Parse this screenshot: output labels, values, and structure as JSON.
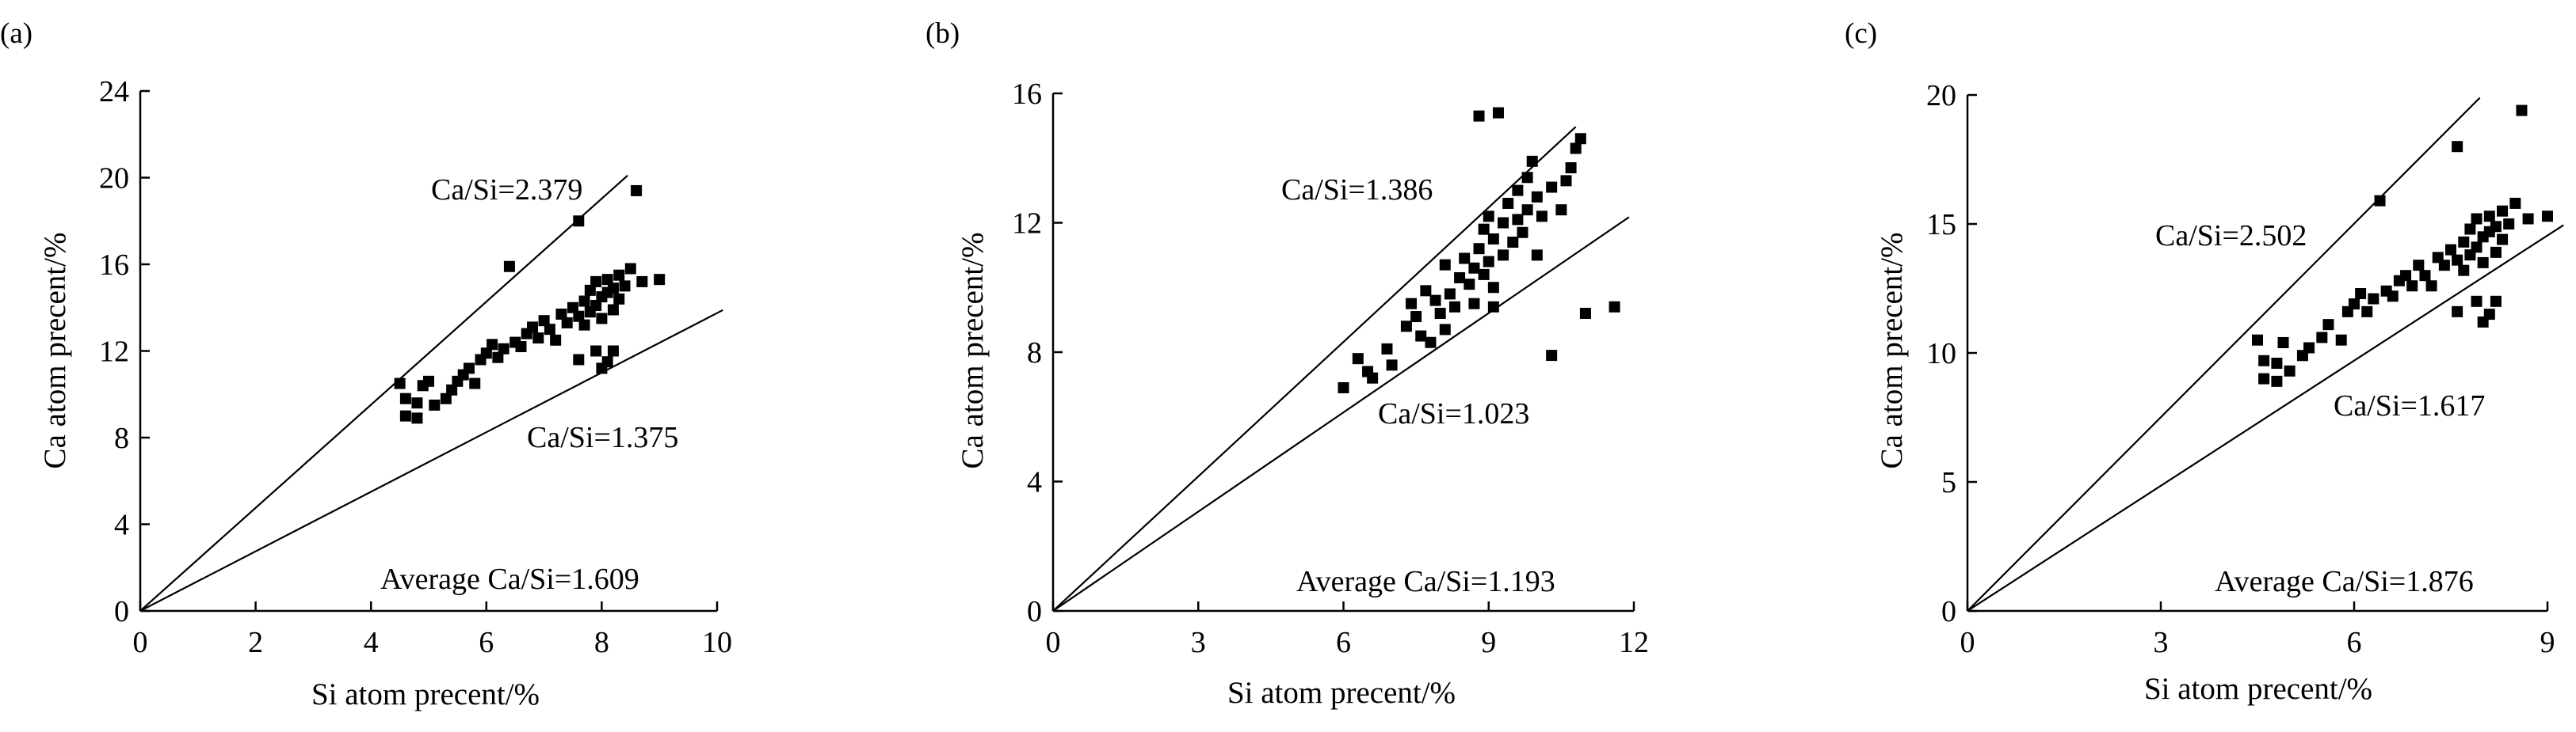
{
  "chart_data": [
    {
      "panel": "(a)",
      "type": "scatter",
      "xlabel": "Si atom precent/%",
      "ylabel": "Ca atom precent/%",
      "xlim": [
        0,
        10
      ],
      "ylim": [
        0,
        24
      ],
      "xticks": [
        0,
        2,
        4,
        6,
        8,
        10
      ],
      "yticks": [
        0,
        4,
        8,
        12,
        16,
        20,
        24
      ],
      "lines": [
        {
          "label": "Ca/Si=2.379",
          "slope": 2.379,
          "x_end": 8.45
        },
        {
          "label": "Ca/Si=1.375",
          "slope": 1.375,
          "x_end": 10.1
        }
      ],
      "annotation": "Average Ca/Si=1.609",
      "points": [
        [
          4.5,
          10.5
        ],
        [
          4.6,
          9.8
        ],
        [
          4.6,
          9.0
        ],
        [
          4.8,
          8.9
        ],
        [
          4.8,
          9.6
        ],
        [
          4.9,
          10.4
        ],
        [
          5.0,
          10.6
        ],
        [
          5.1,
          9.5
        ],
        [
          5.3,
          9.8
        ],
        [
          5.4,
          10.2
        ],
        [
          5.5,
          10.6
        ],
        [
          5.6,
          10.9
        ],
        [
          5.7,
          11.2
        ],
        [
          5.8,
          10.5
        ],
        [
          5.9,
          11.6
        ],
        [
          6.0,
          11.9
        ],
        [
          6.1,
          12.3
        ],
        [
          6.2,
          11.7
        ],
        [
          6.3,
          12.1
        ],
        [
          6.4,
          15.9
        ],
        [
          6.5,
          12.4
        ],
        [
          6.6,
          12.2
        ],
        [
          6.7,
          12.8
        ],
        [
          6.8,
          13.1
        ],
        [
          6.9,
          12.6
        ],
        [
          7.0,
          13.4
        ],
        [
          7.1,
          13.0
        ],
        [
          7.2,
          12.5
        ],
        [
          7.3,
          13.7
        ],
        [
          7.4,
          13.3
        ],
        [
          7.5,
          14.0
        ],
        [
          7.6,
          13.6
        ],
        [
          7.6,
          11.6
        ],
        [
          7.6,
          18.0
        ],
        [
          7.7,
          14.3
        ],
        [
          7.7,
          13.2
        ],
        [
          7.8,
          14.8
        ],
        [
          7.8,
          13.8
        ],
        [
          7.9,
          15.2
        ],
        [
          7.9,
          14.1
        ],
        [
          7.9,
          12.0
        ],
        [
          8.0,
          14.5
        ],
        [
          8.0,
          13.5
        ],
        [
          8.0,
          11.2
        ],
        [
          8.1,
          15.3
        ],
        [
          8.1,
          14.7
        ],
        [
          8.1,
          11.5
        ],
        [
          8.2,
          14.9
        ],
        [
          8.2,
          13.9
        ],
        [
          8.2,
          12.0
        ],
        [
          8.3,
          15.5
        ],
        [
          8.3,
          14.4
        ],
        [
          8.4,
          15.0
        ],
        [
          8.5,
          15.8
        ],
        [
          8.6,
          19.4
        ],
        [
          8.7,
          15.2
        ],
        [
          9.0,
          15.3
        ]
      ]
    },
    {
      "panel": "(b)",
      "type": "scatter",
      "xlabel": "Si atom precent/%",
      "ylabel": "Ca atom precent/%",
      "xlim": [
        0,
        12
      ],
      "ylim": [
        0,
        16
      ],
      "xticks": [
        0,
        3,
        6,
        9,
        12
      ],
      "yticks": [
        0,
        4,
        8,
        12,
        16
      ],
      "lines": [
        {
          "label": "Ca/Si=1.386",
          "slope": 1.386,
          "x_end": 10.8
        },
        {
          "label": "Ca/Si=1.023",
          "slope": 1.023,
          "x_end": 11.9
        }
      ],
      "annotation": "Average Ca/Si=1.193",
      "points": [
        [
          6.0,
          6.9
        ],
        [
          6.3,
          7.8
        ],
        [
          6.5,
          7.4
        ],
        [
          6.6,
          7.2
        ],
        [
          6.9,
          8.1
        ],
        [
          7.0,
          7.6
        ],
        [
          7.3,
          8.8
        ],
        [
          7.4,
          9.5
        ],
        [
          7.5,
          9.1
        ],
        [
          7.6,
          8.5
        ],
        [
          7.7,
          9.9
        ],
        [
          7.8,
          8.3
        ],
        [
          7.9,
          9.6
        ],
        [
          8.0,
          9.2
        ],
        [
          8.1,
          8.7
        ],
        [
          8.1,
          10.7
        ],
        [
          8.2,
          9.8
        ],
        [
          8.3,
          9.4
        ],
        [
          8.4,
          10.3
        ],
        [
          8.5,
          10.9
        ],
        [
          8.6,
          10.1
        ],
        [
          8.7,
          10.6
        ],
        [
          8.7,
          9.5
        ],
        [
          8.8,
          11.2
        ],
        [
          8.8,
          15.3
        ],
        [
          8.9,
          10.4
        ],
        [
          8.9,
          11.8
        ],
        [
          9.0,
          10.8
        ],
        [
          9.0,
          12.2
        ],
        [
          9.1,
          11.5
        ],
        [
          9.1,
          10.0
        ],
        [
          9.1,
          9.4
        ],
        [
          9.2,
          15.4
        ],
        [
          9.3,
          12.0
        ],
        [
          9.3,
          11.0
        ],
        [
          9.4,
          12.6
        ],
        [
          9.5,
          11.4
        ],
        [
          9.6,
          13.0
        ],
        [
          9.6,
          12.1
        ],
        [
          9.7,
          11.7
        ],
        [
          9.8,
          12.4
        ],
        [
          9.8,
          13.4
        ],
        [
          9.9,
          13.9
        ],
        [
          10.0,
          12.8
        ],
        [
          10.0,
          11.0
        ],
        [
          10.1,
          12.2
        ],
        [
          10.3,
          7.9
        ],
        [
          10.3,
          13.1
        ],
        [
          10.5,
          12.4
        ],
        [
          10.6,
          13.3
        ],
        [
          10.7,
          13.7
        ],
        [
          10.8,
          14.3
        ],
        [
          10.9,
          14.6
        ],
        [
          11.0,
          9.2
        ],
        [
          11.6,
          9.4
        ]
      ]
    },
    {
      "panel": "(c)",
      "type": "scatter",
      "xlabel": "Si atom precent/%",
      "ylabel": "Ca atom precent/%",
      "xlim": [
        0,
        9
      ],
      "ylim": [
        0,
        20
      ],
      "xticks": [
        0,
        3,
        6,
        9
      ],
      "yticks": [
        0,
        5,
        10,
        15,
        20
      ],
      "lines": [
        {
          "label": "Ca/Si=2.502",
          "slope": 2.502,
          "x_end": 7.95
        },
        {
          "label": "Ca/Si=1.617",
          "slope": 1.617,
          "x_end": 9.25
        }
      ],
      "annotation": "Average Ca/Si=1.876",
      "points": [
        [
          4.5,
          10.5
        ],
        [
          4.6,
          9.7
        ],
        [
          4.6,
          9.0
        ],
        [
          4.8,
          8.9
        ],
        [
          4.8,
          9.6
        ],
        [
          4.9,
          10.4
        ],
        [
          5.0,
          9.3
        ],
        [
          5.2,
          9.9
        ],
        [
          5.3,
          10.2
        ],
        [
          5.5,
          10.6
        ],
        [
          5.6,
          11.1
        ],
        [
          5.8,
          10.5
        ],
        [
          5.9,
          11.6
        ],
        [
          6.0,
          11.9
        ],
        [
          6.1,
          12.3
        ],
        [
          6.2,
          11.6
        ],
        [
          6.3,
          12.1
        ],
        [
          6.4,
          15.9
        ],
        [
          6.5,
          12.4
        ],
        [
          6.6,
          12.2
        ],
        [
          6.7,
          12.8
        ],
        [
          6.8,
          13.0
        ],
        [
          6.9,
          12.6
        ],
        [
          7.0,
          13.4
        ],
        [
          7.1,
          13.0
        ],
        [
          7.2,
          12.6
        ],
        [
          7.3,
          13.7
        ],
        [
          7.4,
          13.4
        ],
        [
          7.5,
          14.0
        ],
        [
          7.6,
          13.6
        ],
        [
          7.6,
          11.6
        ],
        [
          7.6,
          18.0
        ],
        [
          7.7,
          14.3
        ],
        [
          7.7,
          13.2
        ],
        [
          7.8,
          14.8
        ],
        [
          7.8,
          13.8
        ],
        [
          7.9,
          15.2
        ],
        [
          7.9,
          14.1
        ],
        [
          7.9,
          12.0
        ],
        [
          8.0,
          14.5
        ],
        [
          8.0,
          13.5
        ],
        [
          8.0,
          11.2
        ],
        [
          8.1,
          15.3
        ],
        [
          8.1,
          14.7
        ],
        [
          8.1,
          11.5
        ],
        [
          8.2,
          14.9
        ],
        [
          8.2,
          13.9
        ],
        [
          8.2,
          12.0
        ],
        [
          8.3,
          15.5
        ],
        [
          8.3,
          14.4
        ],
        [
          8.4,
          15.0
        ],
        [
          8.5,
          15.8
        ],
        [
          8.6,
          19.4
        ],
        [
          8.7,
          15.2
        ],
        [
          9.0,
          15.3
        ]
      ]
    }
  ]
}
